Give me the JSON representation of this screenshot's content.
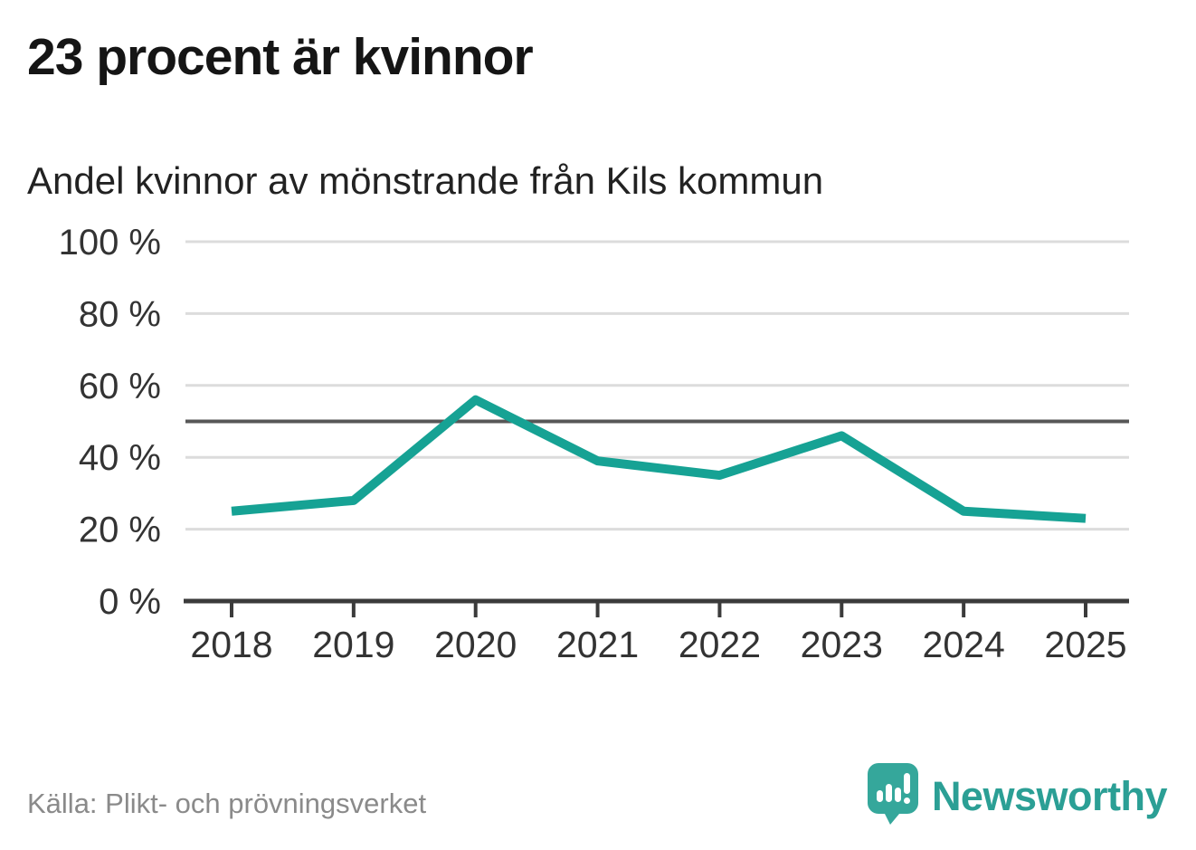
{
  "header": {
    "title": "23 procent är kvinnor",
    "subtitle": "Andel kvinnor av mönstrande från Kils kommun"
  },
  "footer": {
    "source": "Källa: Plikt- och prövningsverket",
    "brand_name": "Newsworthy",
    "brand_icon": "bar-chart-speech-bubble"
  },
  "colors": {
    "line": "#16a294",
    "reference_line": "#575757",
    "gridline": "#dcdcdc",
    "axis": "#3b3b3b",
    "tick_label": "#333333",
    "brand_teal": "#2b9f95",
    "brand_icon_fill": "#35a79b"
  },
  "chart_data": {
    "type": "line",
    "title": "23 procent är kvinnor",
    "subtitle": "Andel kvinnor av mönstrande från Kils kommun",
    "categories": [
      "2018",
      "2019",
      "2020",
      "2021",
      "2022",
      "2023",
      "2024",
      "2025"
    ],
    "series": [
      {
        "name": "Andel kvinnor av mönstrande",
        "values": [
          25,
          28,
          56,
          39,
          35,
          46,
          25,
          23
        ]
      }
    ],
    "xlabel": "",
    "ylabel": "",
    "ylim": [
      0,
      100
    ],
    "yticks": [
      0,
      20,
      40,
      60,
      80,
      100
    ],
    "ytick_labels": [
      "0 %",
      "20 %",
      "40 %",
      "60 %",
      "80 %",
      "100 %"
    ],
    "unit": "%",
    "reference_line_value": 50,
    "grid": true,
    "legend_position": "none",
    "source": "Källa: Plikt- och prövningsverket"
  }
}
